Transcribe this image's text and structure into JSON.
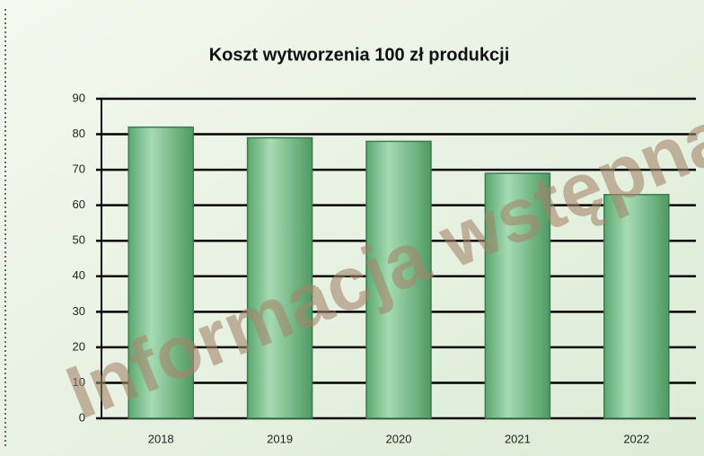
{
  "chart_data": {
    "type": "bar",
    "title": "Koszt wytworzenia 100 zł produkcji",
    "categories": [
      "2018",
      "2019",
      "2020",
      "2021",
      "2022"
    ],
    "values": [
      82,
      79,
      78,
      69,
      63
    ],
    "color": "#82c996",
    "ylim": [
      0,
      90
    ],
    "yticks": [
      0,
      10,
      20,
      30,
      40,
      50,
      60,
      70,
      80,
      90
    ],
    "grid": true,
    "annotation": "Informacja wstępna"
  }
}
